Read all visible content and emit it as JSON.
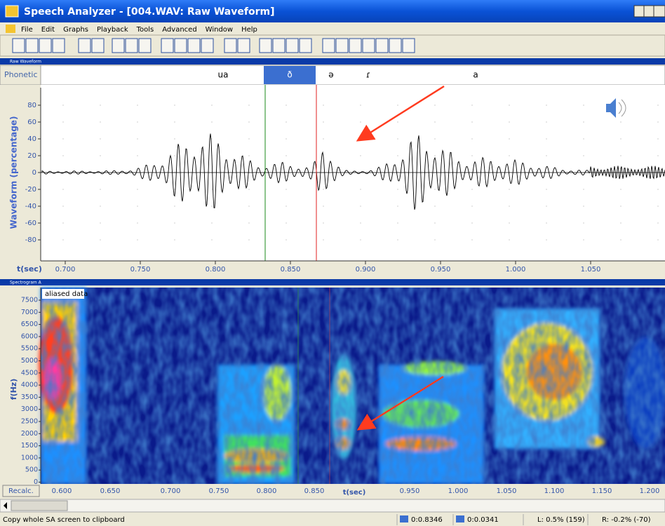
{
  "window": {
    "title": "Speech Analyzer - [004.WAV: Raw Waveform]"
  },
  "menu": [
    "File",
    "Edit",
    "Graphs",
    "Playback",
    "Tools",
    "Advanced",
    "Window",
    "Help"
  ],
  "waveform_pane": {
    "title": "Raw Waveform",
    "phonetic_label": "Phonetic",
    "phonetic": [
      "ua",
      "ð",
      "ə",
      "ɾ",
      "a"
    ],
    "y_label": "Waveform (percentage)",
    "yticks": [
      "80",
      "60",
      "40",
      "20",
      "0",
      "-20",
      "-40",
      "-60",
      "-80"
    ],
    "x_label": "t(sec)",
    "xticks": [
      "0.700",
      "0.750",
      "0.800",
      "0.850",
      "0.900",
      "0.950",
      "1.000",
      "1.050"
    ]
  },
  "spectrogram_pane": {
    "title": "Spectrogram A",
    "note": "aliased data",
    "y_label": "f(Hz)",
    "yticks": [
      "7500",
      "7000",
      "6500",
      "6000",
      "5500",
      "5000",
      "4500",
      "4000",
      "3500",
      "3000",
      "2500",
      "2000",
      "1500",
      "1000",
      "500",
      "0"
    ],
    "x_label": "t(sec)",
    "xticks": [
      "0.600",
      "0.650",
      "0.700",
      "0.750",
      "0.800",
      "0.850",
      "0.950",
      "1.000",
      "1.050",
      "1.100",
      "1.150",
      "1.200"
    ],
    "button": "Recalc."
  },
  "status": {
    "message": "Copy whole SA screen to clipboard",
    "fields": [
      "0:0.8346",
      "0:0.0341",
      "L: 0.5% (159)",
      "R: -0.2% (-70)"
    ]
  }
}
